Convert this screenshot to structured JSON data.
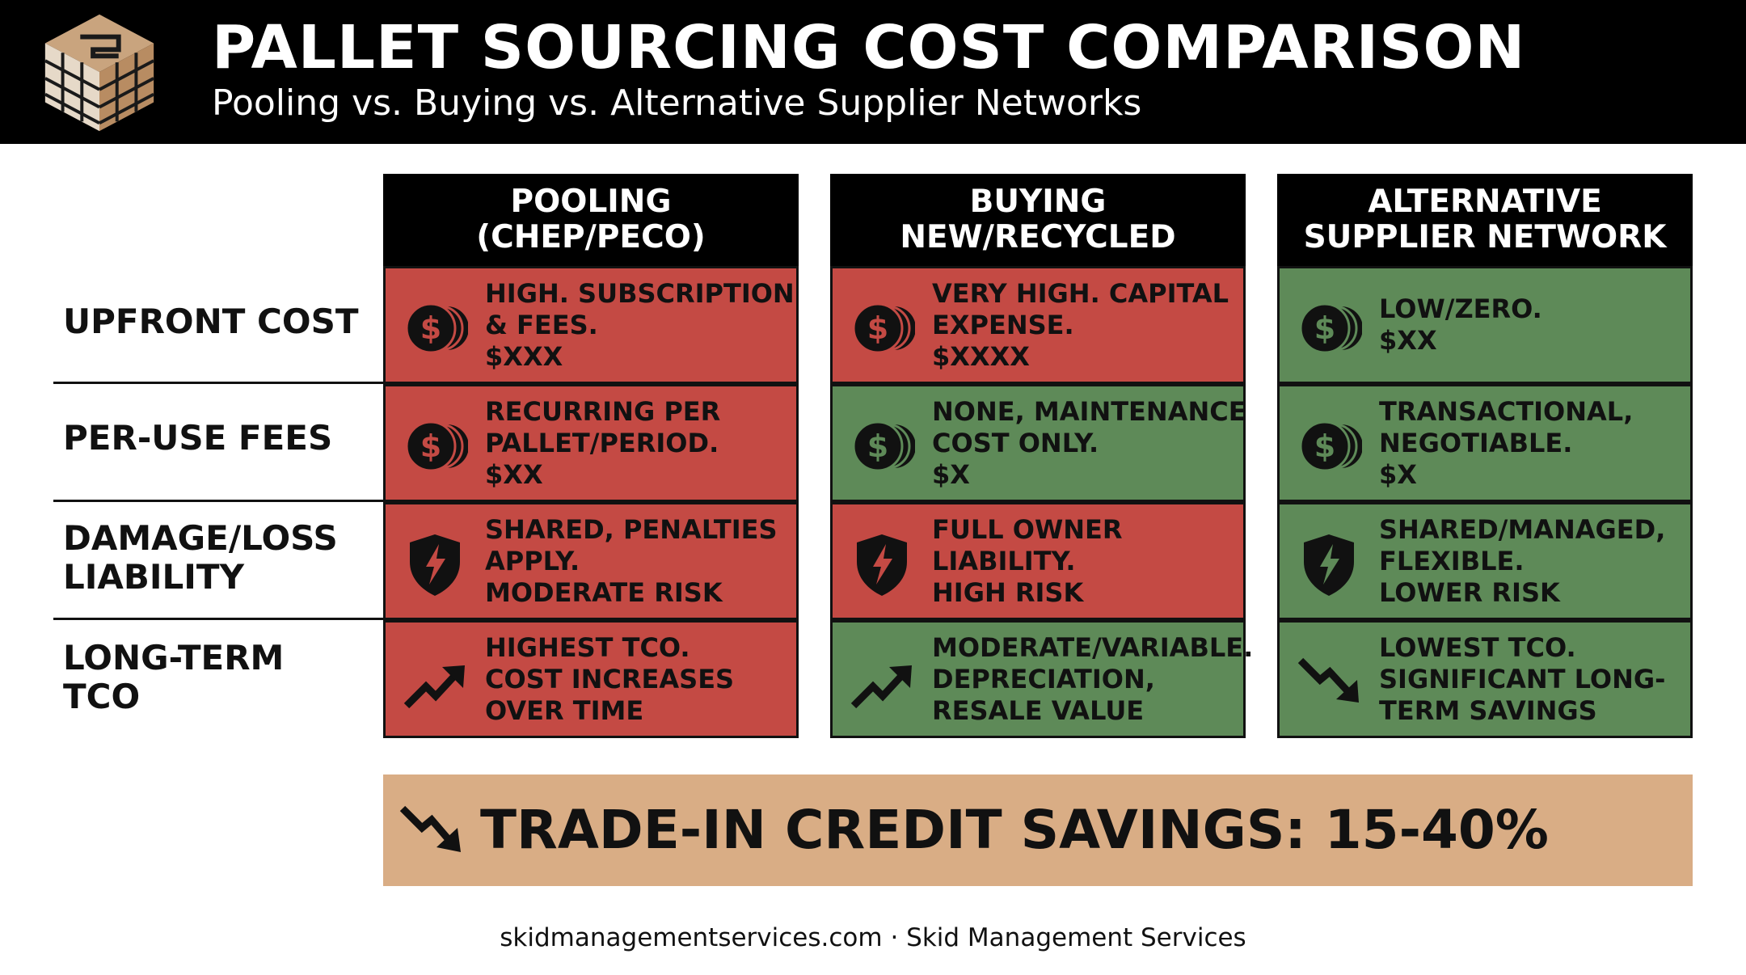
{
  "header": {
    "title": "PALLET SOURCING COST COMPARISON",
    "subtitle": "Pooling vs. Buying vs. Alternative Supplier Networks",
    "logo": "pallet-cube-logo-icon"
  },
  "colors": {
    "header_bg": "#000000",
    "cost_bad": "#c44a44",
    "cost_good": "#5e8a58",
    "banner": "#d9ad85"
  },
  "columns": [
    {
      "line1": "POOLING",
      "line2": "(CHEP/PECO)"
    },
    {
      "line1": "BUYING",
      "line2": "NEW/RECYCLED"
    },
    {
      "line1": "ALTERNATIVE",
      "line2": "SUPPLIER NETWORK"
    }
  ],
  "rows": [
    {
      "label": [
        "UPFRONT COST"
      ],
      "icon": "dollar-coins-icon",
      "cells": [
        {
          "status": "red",
          "lines": [
            "HIGH. SUBSCRIPTION",
            "& FEES.",
            "$XXX"
          ]
        },
        {
          "status": "red",
          "lines": [
            "VERY HIGH. CAPITAL",
            "EXPENSE.",
            "$XXXX"
          ]
        },
        {
          "status": "green",
          "lines": [
            "LOW/ZERO.",
            "$XX"
          ]
        }
      ]
    },
    {
      "label": [
        "PER-USE FEES"
      ],
      "icon": "dollar-coins-icon",
      "cells": [
        {
          "status": "red",
          "lines": [
            "RECURRING PER",
            "PALLET/PERIOD.",
            "$XX"
          ]
        },
        {
          "status": "green",
          "lines": [
            "NONE, MAINTENANCE",
            "COST ONLY.",
            "$X"
          ]
        },
        {
          "status": "green",
          "lines": [
            "TRANSACTIONAL,",
            "NEGOTIABLE.",
            "$X"
          ]
        }
      ]
    },
    {
      "label": [
        "DAMAGE/LOSS",
        "LIABILITY"
      ],
      "icon": "shield-lightning-icon",
      "cells": [
        {
          "status": "red",
          "lines": [
            "SHARED, PENALTIES",
            "APPLY.",
            "MODERATE RISK"
          ]
        },
        {
          "status": "red",
          "lines": [
            "FULL OWNER",
            "LIABILITY.",
            "HIGH RISK"
          ]
        },
        {
          "status": "green",
          "lines": [
            "SHARED/MANAGED,",
            "FLEXIBLE.",
            "LOWER RISK"
          ]
        }
      ]
    },
    {
      "label": [
        "LONG-TERM",
        "TCO"
      ],
      "icon": "trend-arrow-icon",
      "cells": [
        {
          "status": "red",
          "trend": "up",
          "lines": [
            "HIGHEST TCO.",
            "COST INCREASES",
            "OVER TIME"
          ]
        },
        {
          "status": "green",
          "trend": "up",
          "lines": [
            "MODERATE/VARIABLE.",
            "DEPRECIATION,",
            "RESALE VALUE"
          ]
        },
        {
          "status": "green",
          "trend": "down",
          "lines": [
            "LOWEST TCO.",
            "SIGNIFICANT LONG-",
            "TERM SAVINGS"
          ]
        }
      ]
    }
  ],
  "banner": {
    "text": "TRADE-IN CREDIT SAVINGS: 15-40%",
    "icon": "trend-down-arrow-icon"
  },
  "footer": {
    "text": "skidmanagementservices.com · Skid Management Services"
  }
}
